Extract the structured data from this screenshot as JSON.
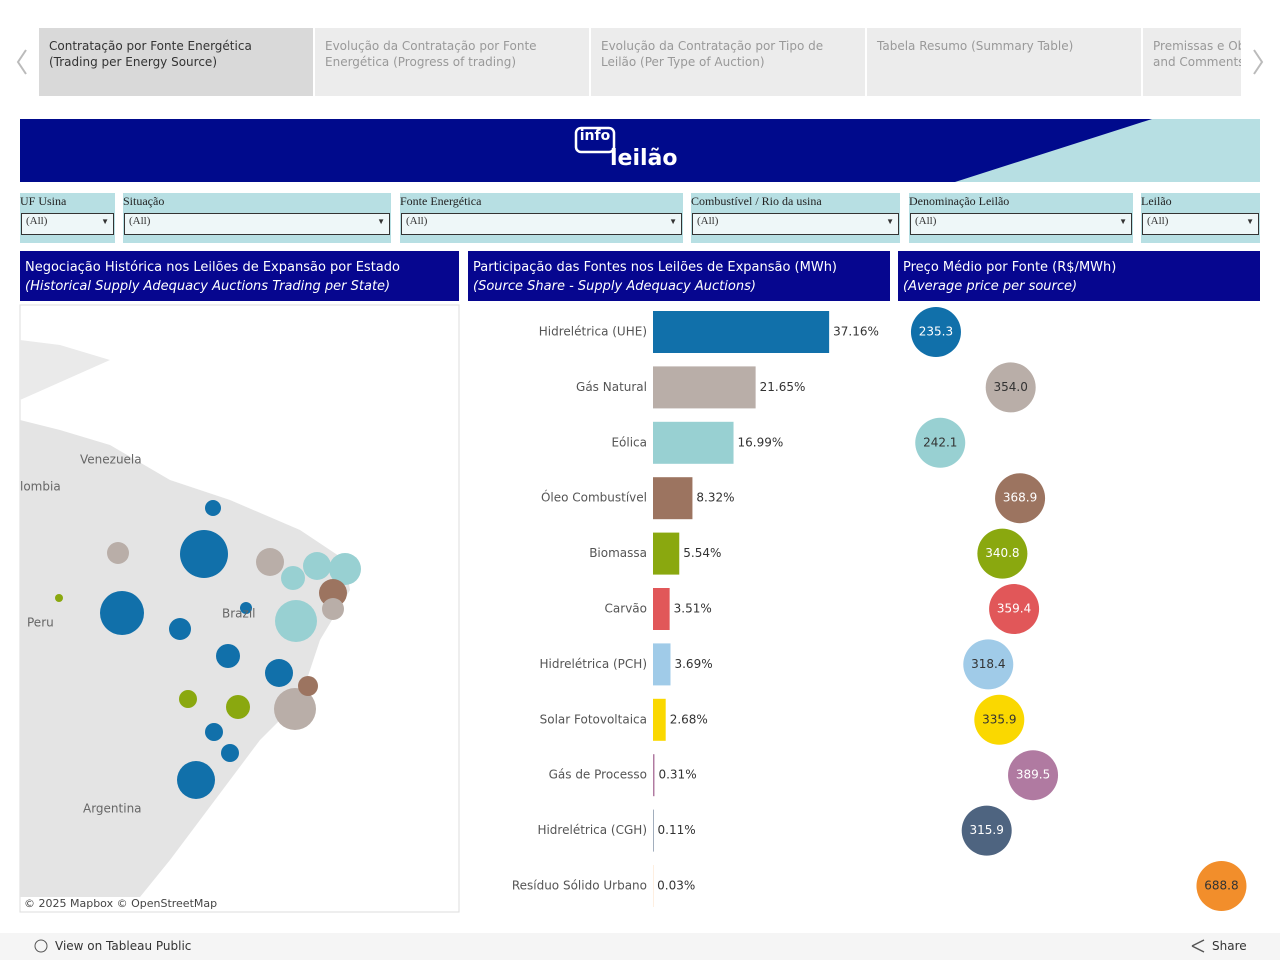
{
  "tabs": [
    "Contratação por Fonte Energética (Trading per Energy Source)",
    "Evolução da Contratação por Fonte Energética (Progress of trading)",
    "Evolução da Contratação por Tipo de Leilão (Per Type of Auction)",
    "Tabela Resumo (Summary Table)",
    "Premissas e Observações (Assumptions and Comments)"
  ],
  "header": {
    "logo_small": "info",
    "logo_big": "leilão"
  },
  "filters": [
    {
      "label": "UF Usina",
      "value": "(All)"
    },
    {
      "label": "Situação",
      "value": "(All)"
    },
    {
      "label": "Fonte Energética",
      "value": "(All)"
    },
    {
      "label": "Combustível / Rio da usina",
      "value": "(All)"
    },
    {
      "label": "Denominação Leilão",
      "value": "(All)"
    },
    {
      "label": "Leilão",
      "value": "(All)"
    }
  ],
  "map": {
    "title": "Negociação Histórica nos Leilões de Expansão por Estado",
    "subtitle": "(Historical Supply  Adequacy Auctions Trading per State)",
    "labels": [
      "Venezuela",
      "lombia",
      "Peru",
      "Brazil",
      "Argentina"
    ],
    "attribution": "© 2025 Mapbox  © OpenStreetMap"
  },
  "chart_data": [
    {
      "type": "bar",
      "title": "Participação das Fontes nos Leilões de Expansão (MWh)",
      "subtitle": "(Source Share - Supply Adequacy Auctions)",
      "categories": [
        "Hidrelétrica (UHE)",
        "Gás Natural",
        "Eólica",
        "Óleo Combustível",
        "Biomassa",
        "Carvão",
        "Hidrelétrica (PCH)",
        "Solar Fotovoltaica",
        "Gás de Processo",
        "Hidrelétrica (CGH)",
        "Resíduo Sólido Urbano"
      ],
      "values": [
        37.16,
        21.65,
        16.99,
        8.32,
        5.54,
        3.51,
        3.69,
        2.68,
        0.31,
        0.11,
        0.03
      ],
      "value_labels": [
        "37.16%",
        "21.65%",
        "16.99%",
        "8.32%",
        "5.54%",
        "3.51%",
        "3.69%",
        "2.68%",
        "0.31%",
        "0.11%",
        "0.03%"
      ],
      "colors": [
        "#1170aa",
        "#b9aea8",
        "#98d0d2",
        "#9c7460",
        "#8aa80f",
        "#e15759",
        "#a0cbe8",
        "#fad800",
        "#b07aa1",
        "#4e6480",
        "#f28e2b"
      ],
      "xlim": [
        0,
        50
      ]
    },
    {
      "type": "bubble",
      "title": "Preço Médio por Fonte (R$/MWh)",
      "subtitle": "(Average price per source)",
      "values": [
        235.3,
        354.0,
        242.1,
        368.9,
        340.8,
        359.4,
        318.4,
        335.9,
        389.5,
        315.9,
        688.8
      ],
      "value_labels": [
        "235.3",
        "354.0",
        "242.1",
        "368.9",
        "340.8",
        "359.4",
        "318.4",
        "335.9",
        "389.5",
        "315.9",
        "688.8"
      ],
      "colors": [
        "#1170aa",
        "#b9aea8",
        "#98d0d2",
        "#9c7460",
        "#8aa80f",
        "#e15759",
        "#a0cbe8",
        "#fad800",
        "#b07aa1",
        "#4e6480",
        "#f28e2b"
      ],
      "xlim": [
        175,
        750
      ]
    }
  ],
  "footer": {
    "link": "View on Tableau Public",
    "share": "Share"
  }
}
